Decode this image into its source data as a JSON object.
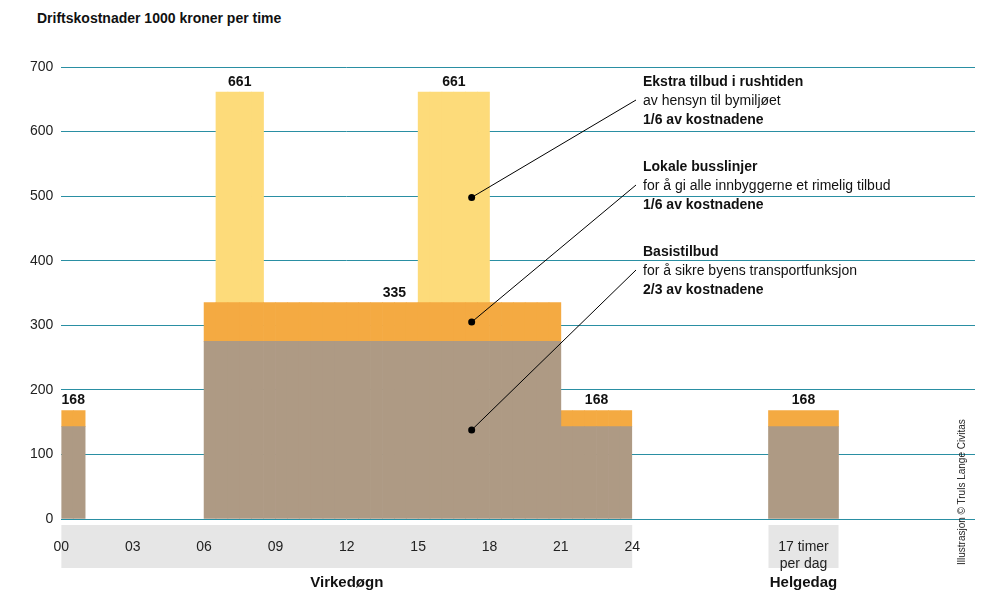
{
  "credit": "Illustrasjon © Truls Lange Civitas",
  "chart_data": [
    {
      "type": "bar",
      "stacked": true,
      "grid": true,
      "title": "Driftskostnader 1000 kroner per time",
      "x_label": "Virkedøgn",
      "x": [
        0.25,
        0.75,
        1.25,
        1.75,
        2.25,
        2.75,
        3.25,
        3.75,
        4.25,
        4.75,
        5.25,
        5.75,
        6.25,
        6.75,
        7.25,
        7.75,
        8.25,
        8.75,
        9.25,
        9.75,
        10.25,
        10.75,
        11.25,
        11.75,
        12.25,
        12.75,
        13.25,
        13.75,
        14.25,
        14.75,
        15.25,
        15.75,
        16.25,
        16.75,
        17.25,
        17.75,
        18.25,
        18.75,
        19.25,
        19.75,
        20.25,
        20.75,
        21.25,
        21.75,
        22.25,
        22.75,
        23.25,
        23.75
      ],
      "xlim": [
        0,
        24
      ],
      "xticks": [
        {
          "value": 0,
          "label": "00"
        },
        {
          "value": 3,
          "label": "03"
        },
        {
          "value": 6,
          "label": "06"
        },
        {
          "value": 9,
          "label": "09"
        },
        12,
        15,
        18,
        21,
        24
      ],
      "ylim": [
        0,
        700
      ],
      "yticks": [
        0,
        100,
        200,
        300,
        400,
        500,
        600,
        700
      ],
      "series": [
        {
          "name": "Basistilbud",
          "note": "for å sikre byens transportfunksjon",
          "share": "2/3 av kostnadene",
          "color": "#ae9a84",
          "values": [
            143,
            143,
            null,
            null,
            null,
            null,
            null,
            null,
            null,
            null,
            null,
            null,
            275,
            275,
            275,
            275,
            275,
            275,
            275,
            275,
            275,
            275,
            275,
            275,
            275,
            275,
            275,
            275,
            275,
            275,
            275,
            275,
            275,
            275,
            275,
            275,
            275,
            275,
            275,
            275,
            275,
            275,
            143,
            143,
            143,
            143,
            143,
            143
          ]
        },
        {
          "name": "Lokale busslinjer",
          "note": "for å gi alle innbyggerne et rimelig tilbud",
          "share": "1/6 av kostnadene",
          "color": "#f4aa42",
          "values": [
            25,
            25,
            null,
            null,
            null,
            null,
            null,
            null,
            null,
            null,
            null,
            null,
            60,
            60,
            60,
            60,
            60,
            60,
            60,
            60,
            60,
            60,
            60,
            60,
            60,
            60,
            60,
            60,
            60,
            60,
            60,
            60,
            60,
            60,
            60,
            60,
            60,
            60,
            60,
            60,
            60,
            60,
            25,
            25,
            25,
            25,
            25,
            25
          ]
        },
        {
          "name": "Ekstra tilbud i rushtiden",
          "note": "av hensyn til bymiljøet",
          "share": "1/6 av kostnadene",
          "color": "#fddb7a",
          "values": [
            null,
            null,
            null,
            null,
            null,
            null,
            null,
            null,
            null,
            null,
            null,
            null,
            null,
            326,
            326,
            326,
            326,
            null,
            null,
            null,
            null,
            null,
            null,
            null,
            null,
            null,
            null,
            null,
            null,
            null,
            326,
            326,
            326,
            326,
            326,
            326,
            null,
            null,
            null,
            null,
            null,
            null,
            null,
            null,
            null,
            null,
            null,
            null
          ]
        }
      ],
      "annotations": [
        {
          "text": "168",
          "x": 0.5,
          "y": 168
        },
        {
          "text": "661",
          "x": 7.5,
          "y": 661
        },
        {
          "text": "335",
          "x": 14,
          "y": 335
        },
        {
          "text": "661",
          "x": 16.5,
          "y": 661
        },
        {
          "text": "168",
          "x": 22.5,
          "y": 168
        }
      ]
    },
    {
      "type": "bar",
      "stacked": true,
      "grid": true,
      "tick_labels": "x",
      "x_label": "Helgedag",
      "categories": [
        "17 timer per dag"
      ],
      "ylim": [
        0,
        700
      ],
      "yticks": [
        0,
        100,
        200,
        300,
        400,
        500,
        600,
        700
      ],
      "series": [
        {
          "color": "#ae9a84",
          "values": [
            143
          ]
        },
        {
          "color": "#f4aa42",
          "values": [
            25
          ]
        }
      ],
      "annotations": [
        {
          "text": "168",
          "x": "17 timer per dag",
          "y": 168
        }
      ]
    }
  ]
}
